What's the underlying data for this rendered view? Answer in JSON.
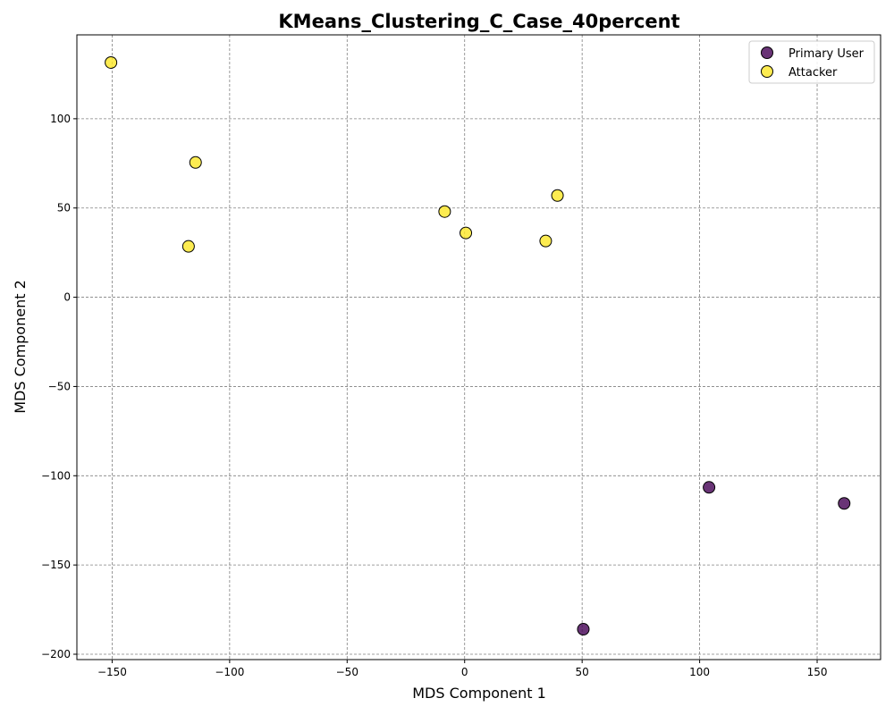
{
  "chart_data": {
    "type": "scatter",
    "title": "KMeans_Clustering_C_Case_40percent",
    "xlabel": "MDS Component 1",
    "ylabel": "MDS Component 2",
    "xlim": [
      -165,
      177
    ],
    "ylim": [
      -203,
      147
    ],
    "xticks": [
      -150,
      -100,
      -50,
      0,
      50,
      100,
      150
    ],
    "yticks": [
      -200,
      -150,
      -100,
      -50,
      0,
      50,
      100
    ],
    "xtick_labels": [
      "−150",
      "−100",
      "−50",
      "0",
      "50",
      "100",
      "150"
    ],
    "ytick_labels": [
      "−200",
      "−150",
      "−100",
      "−50",
      "0",
      "50",
      "100"
    ],
    "grid": true,
    "legend_position": "top-right",
    "series": [
      {
        "name": "Primary User",
        "color": "#440154",
        "points": [
          {
            "x": 104,
            "y": -106.5
          },
          {
            "x": 161.5,
            "y": -115.5
          },
          {
            "x": 50.5,
            "y": -186
          }
        ]
      },
      {
        "name": "Attacker",
        "color": "#fde725",
        "points": [
          {
            "x": -150.5,
            "y": 131.5
          },
          {
            "x": -114.5,
            "y": 75.5
          },
          {
            "x": -117.5,
            "y": 28.5
          },
          {
            "x": -8.5,
            "y": 48
          },
          {
            "x": 0.5,
            "y": 36
          },
          {
            "x": 39.5,
            "y": 57
          },
          {
            "x": 34.5,
            "y": 31.5
          }
        ]
      }
    ]
  }
}
